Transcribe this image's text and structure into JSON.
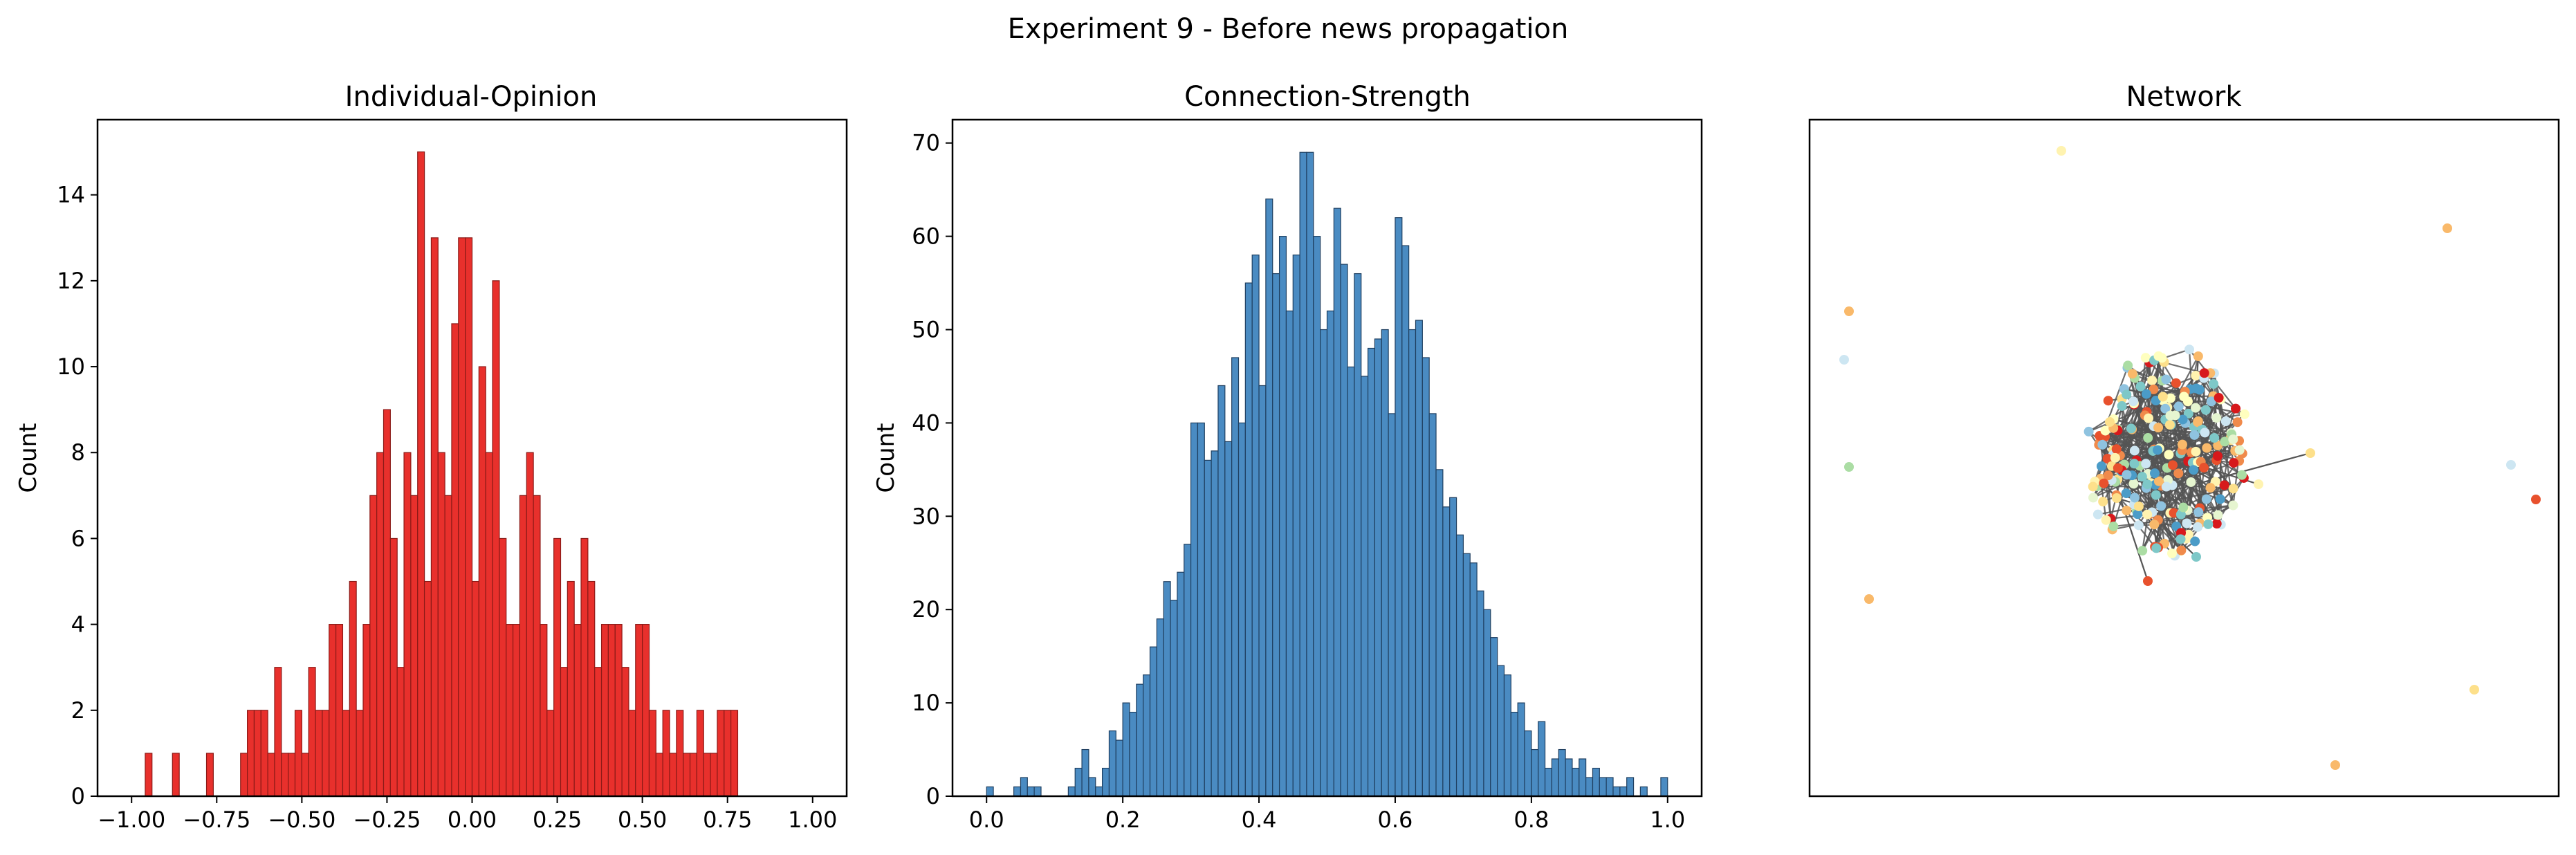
{
  "figure_title": "Experiment 9 - Before news propagation",
  "colors": {
    "opinion_bar": "#e8302c",
    "opinion_edge": "#8b1a17",
    "strength_bar": "#4a8bc2",
    "strength_edge": "#1f3f60",
    "network_edge": "#555555"
  },
  "chart_data": [
    {
      "type": "bar",
      "title": "Individual-Opinion",
      "ylabel": "Count",
      "xlabel": "",
      "xlim": [
        -1.1,
        1.1
      ],
      "ylim": [
        0,
        15.75
      ],
      "xticks": [
        -1.0,
        -0.75,
        -0.5,
        -0.25,
        0.0,
        0.25,
        0.5,
        0.75,
        1.0
      ],
      "xtick_labels": [
        "−1.00",
        "−0.75",
        "−0.50",
        "−0.25",
        "0.00",
        "0.25",
        "0.50",
        "0.75",
        "1.00"
      ],
      "yticks": [
        0,
        2,
        4,
        6,
        8,
        10,
        12,
        14
      ],
      "bin_width": 0.02,
      "x": [
        -0.95,
        -0.87,
        -0.77,
        -0.67,
        -0.65,
        -0.63,
        -0.61,
        -0.59,
        -0.57,
        -0.55,
        -0.53,
        -0.51,
        -0.49,
        -0.47,
        -0.45,
        -0.43,
        -0.41,
        -0.39,
        -0.37,
        -0.35,
        -0.33,
        -0.31,
        -0.29,
        -0.27,
        -0.25,
        -0.23,
        -0.21,
        -0.19,
        -0.17,
        -0.15,
        -0.13,
        -0.11,
        -0.09,
        -0.07,
        -0.05,
        -0.03,
        -0.01,
        0.01,
        0.03,
        0.05,
        0.07,
        0.09,
        0.11,
        0.13,
        0.15,
        0.17,
        0.19,
        0.21,
        0.23,
        0.25,
        0.27,
        0.29,
        0.31,
        0.33,
        0.35,
        0.37,
        0.39,
        0.41,
        0.43,
        0.45,
        0.47,
        0.49,
        0.51,
        0.53,
        0.55,
        0.57,
        0.59,
        0.61,
        0.63,
        0.65,
        0.67,
        0.69,
        0.71,
        0.73,
        0.75,
        0.77
      ],
      "values": [
        1,
        1,
        1,
        1,
        2,
        2,
        2,
        1,
        3,
        1,
        1,
        2,
        1,
        3,
        2,
        2,
        4,
        4,
        2,
        5,
        2,
        4,
        7,
        8,
        9,
        6,
        3,
        8,
        7,
        15,
        5,
        13,
        8,
        7,
        11,
        13,
        13,
        5,
        10,
        8,
        12,
        6,
        4,
        4,
        7,
        8,
        7,
        4,
        2,
        6,
        3,
        5,
        4,
        6,
        5,
        3,
        4,
        4,
        4,
        3,
        2,
        4,
        4,
        2,
        1,
        2,
        1,
        2,
        1,
        1,
        2,
        1,
        1,
        2,
        2,
        2
      ]
    },
    {
      "type": "bar",
      "title": "Connection-Strength",
      "ylabel": "Count",
      "xlabel": "",
      "xlim": [
        -0.05,
        1.05
      ],
      "ylim": [
        0,
        72.5
      ],
      "xticks": [
        0.0,
        0.2,
        0.4,
        0.6,
        0.8,
        1.0
      ],
      "xtick_labels": [
        "0.0",
        "0.2",
        "0.4",
        "0.6",
        "0.8",
        "1.0"
      ],
      "yticks": [
        0,
        10,
        20,
        30,
        40,
        50,
        60,
        70
      ],
      "bin_width": 0.01,
      "x": [
        0.005,
        0.045,
        0.055,
        0.065,
        0.075,
        0.125,
        0.135,
        0.145,
        0.155,
        0.165,
        0.175,
        0.185,
        0.195,
        0.205,
        0.215,
        0.225,
        0.235,
        0.245,
        0.255,
        0.265,
        0.275,
        0.285,
        0.295,
        0.305,
        0.315,
        0.325,
        0.335,
        0.345,
        0.355,
        0.365,
        0.375,
        0.385,
        0.395,
        0.405,
        0.415,
        0.425,
        0.435,
        0.445,
        0.455,
        0.465,
        0.475,
        0.485,
        0.495,
        0.505,
        0.515,
        0.525,
        0.535,
        0.545,
        0.555,
        0.565,
        0.575,
        0.585,
        0.595,
        0.605,
        0.615,
        0.625,
        0.635,
        0.645,
        0.655,
        0.665,
        0.675,
        0.685,
        0.695,
        0.705,
        0.715,
        0.725,
        0.735,
        0.745,
        0.755,
        0.765,
        0.775,
        0.785,
        0.795,
        0.805,
        0.815,
        0.825,
        0.835,
        0.845,
        0.855,
        0.865,
        0.875,
        0.885,
        0.895,
        0.905,
        0.915,
        0.925,
        0.935,
        0.945,
        0.965,
        0.995
      ],
      "values": [
        1,
        1,
        2,
        1,
        1,
        1,
        3,
        5,
        2,
        1,
        3,
        7,
        6,
        10,
        9,
        12,
        13,
        16,
        19,
        23,
        21,
        24,
        27,
        40,
        40,
        36,
        37,
        44,
        38,
        47,
        40,
        55,
        58,
        44,
        64,
        56,
        60,
        52,
        58,
        69,
        69,
        60,
        50,
        52,
        63,
        57,
        46,
        56,
        45,
        48,
        49,
        50,
        41,
        62,
        59,
        50,
        51,
        47,
        41,
        35,
        31,
        32,
        28,
        26,
        25,
        22,
        20,
        17,
        14,
        13,
        9,
        10,
        7,
        5,
        8,
        3,
        4,
        5,
        4,
        3,
        4,
        2,
        3,
        2,
        2,
        1,
        1,
        2,
        1,
        2
      ]
    },
    {
      "type": "scatter",
      "title": "Network"
    }
  ]
}
